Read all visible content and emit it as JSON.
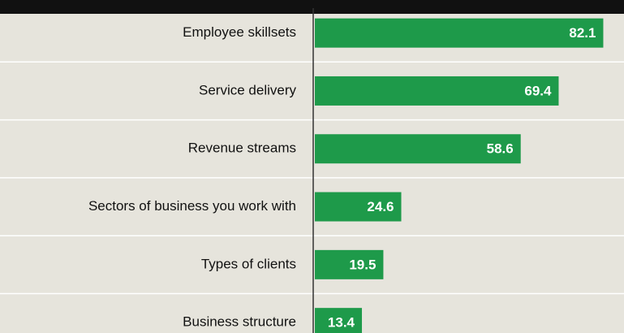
{
  "chart_data": {
    "type": "barh",
    "categories": [
      "Employee skillsets",
      "Service delivery",
      "Revenue streams",
      "Sectors of business you work with",
      "Types of clients",
      "Business structure"
    ],
    "values": [
      82.1,
      69.4,
      58.6,
      24.6,
      19.5,
      13.4
    ],
    "color": "#1e9a4a",
    "xlim": [
      0,
      88
    ]
  }
}
